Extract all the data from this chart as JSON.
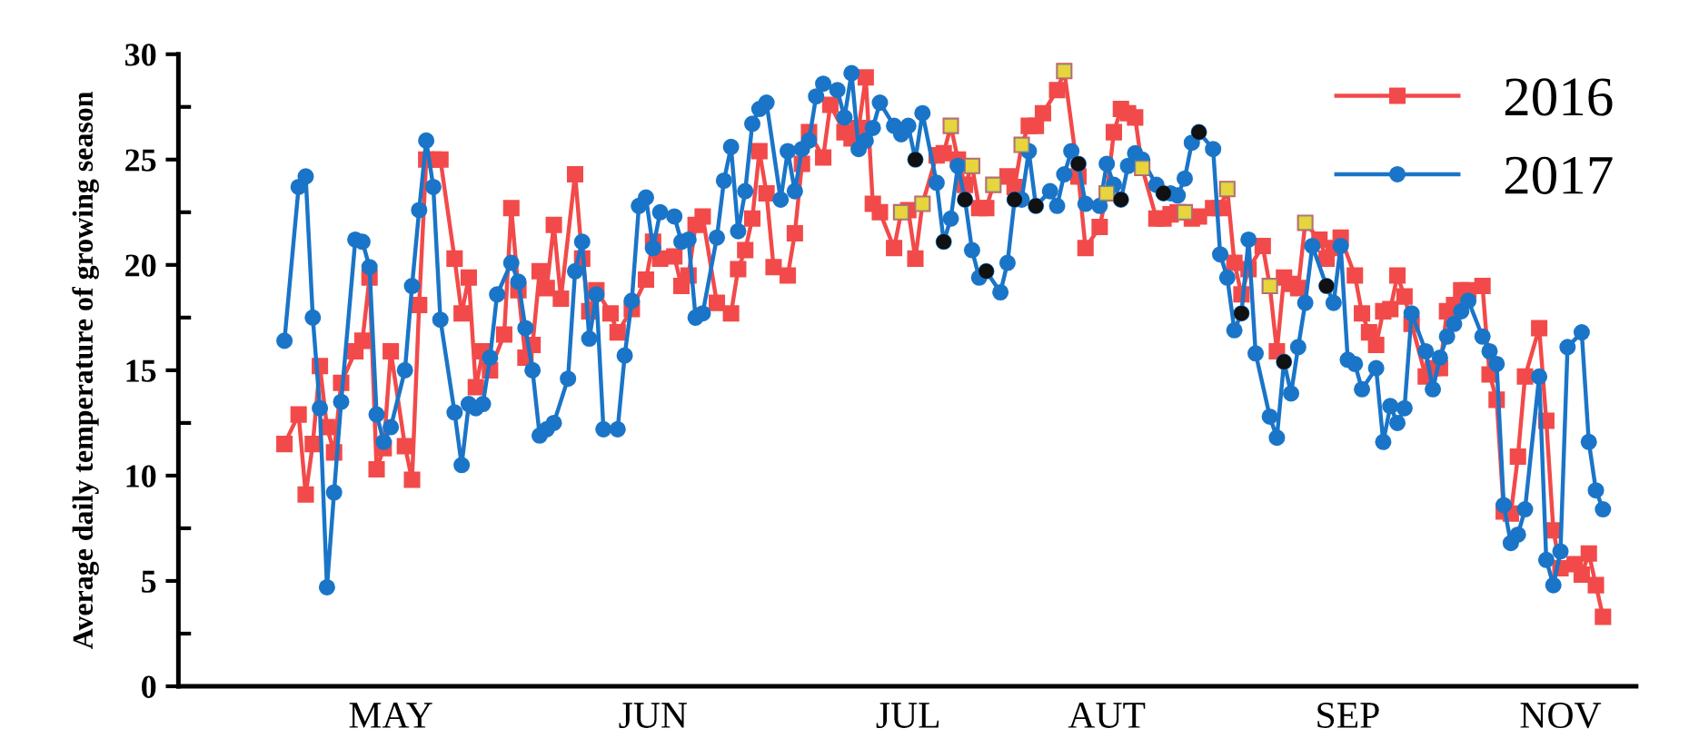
{
  "chart_data": {
    "type": "line",
    "ylabel": "Average daily temperature of growing season",
    "categories": [
      null,
      null,
      null,
      null,
      null,
      null,
      null,
      null,
      null,
      null,
      null,
      null,
      null,
      null,
      null,
      "MAY",
      null,
      null,
      null,
      null,
      null,
      null,
      null,
      null,
      null,
      null,
      null,
      null,
      null,
      null,
      null,
      null,
      null,
      null,
      null,
      null,
      null,
      null,
      null,
      null,
      null,
      null,
      null,
      null,
      null,
      null,
      null,
      null,
      null,
      null,
      null,
      null,
      "JUN",
      null,
      null,
      null,
      null,
      null,
      null,
      null,
      null,
      null,
      null,
      null,
      null,
      null,
      null,
      null,
      null,
      null,
      null,
      null,
      null,
      null,
      null,
      null,
      null,
      null,
      null,
      null,
      null,
      null,
      null,
      null,
      null,
      null,
      null,
      null,
      "JUL",
      null,
      null,
      null,
      null,
      null,
      null,
      null,
      null,
      null,
      null,
      null,
      null,
      null,
      null,
      null,
      null,
      null,
      null,
      null,
      null,
      null,
      null,
      null,
      null,
      null,
      null,
      null,
      "AUT",
      null,
      null,
      null,
      null,
      null,
      null,
      null,
      null,
      null,
      null,
      null,
      null,
      null,
      null,
      null,
      null,
      null,
      null,
      null,
      null,
      null,
      null,
      null,
      null,
      null,
      null,
      null,
      null,
      null,
      null,
      null,
      null,
      null,
      "SEP",
      null,
      null,
      null,
      null,
      null,
      null,
      null,
      null,
      null,
      null,
      null,
      null,
      null,
      null,
      null,
      null,
      null,
      null,
      null,
      null,
      null,
      null,
      null,
      null,
      null,
      null,
      null,
      null,
      null,
      "NOV",
      null,
      null,
      null,
      null,
      null,
      null
    ],
    "ylim": [
      0,
      30
    ],
    "yticks": [
      0,
      5,
      10,
      15,
      20,
      25,
      30
    ],
    "grid": false,
    "legend": "top right",
    "line_style": "solid",
    "series": [
      {
        "name": "2016",
        "color": "#f24a4a",
        "marker": "square",
        "values": [
          11.5,
          null,
          12.9,
          9.1,
          11.5,
          15.2,
          12.3,
          11.1,
          14.4,
          null,
          15.9,
          16.4,
          19.4,
          10.3,
          11.3,
          15.9,
          null,
          11.4,
          9.8,
          18.1,
          25.0,
          25.0,
          25.0,
          null,
          20.3,
          17.7,
          19.4,
          14.2,
          15.9,
          15.0,
          null,
          16.7,
          22.7,
          18.8,
          15.6,
          16.2,
          19.7,
          18.9,
          21.9,
          18.4,
          null,
          24.3,
          20.3,
          17.8,
          18.8,
          null,
          17.7,
          16.8,
          null,
          17.9,
          null,
          19.3,
          21.1,
          20.3,
          null,
          20.4,
          19.0,
          19.5,
          21.9,
          22.3,
          null,
          18.2,
          null,
          17.7,
          19.8,
          20.7,
          22.2,
          25.4,
          23.4,
          19.9,
          null,
          19.5,
          21.5,
          24.8,
          26.3,
          null,
          25.1,
          27.6,
          null,
          26.3,
          26.0,
          26.5,
          28.9,
          22.9,
          22.5,
          null,
          20.8,
          22.5,
          22.6,
          20.3,
          22.9,
          null,
          25.2,
          25.3,
          26.6,
          25.0,
          23.8,
          24.7,
          22.7,
          22.7,
          23.8,
          null,
          24.2,
          23.7,
          25.7,
          26.6,
          26.6,
          27.2,
          null,
          28.3,
          29.2,
          null,
          24.2,
          20.8,
          null,
          21.8,
          23.4,
          26.3,
          27.4,
          27.2,
          27.0,
          24.6,
          null,
          22.2,
          22.2,
          22.4,
          22.5,
          22.5,
          22.2,
          22.3,
          null,
          22.7,
          22.7,
          23.6,
          20.1,
          18.6,
          19.8,
          null,
          20.9,
          19.0,
          15.9,
          19.4,
          19.1,
          18.9,
          22.0,
          null,
          21.2,
          20.3,
          20.8,
          21.3,
          null,
          19.5,
          17.7,
          16.8,
          16.2,
          17.8,
          17.9,
          19.5,
          18.5,
          17.2,
          null,
          14.7,
          15.1,
          15.1,
          17.8,
          18.1,
          18.8,
          18.8,
          null,
          19.0,
          14.8,
          13.6,
          8.3,
          8.2,
          10.9,
          14.7,
          null,
          17.0,
          12.6,
          7.4,
          5.6,
          null,
          5.8,
          5.3,
          6.3,
          4.8,
          3.3
        ]
      },
      {
        "name": "2017",
        "color": "#1a75c8",
        "marker": "circle",
        "values": [
          16.4,
          null,
          23.7,
          24.2,
          17.5,
          13.2,
          4.7,
          9.2,
          13.5,
          null,
          21.2,
          21.1,
          19.9,
          12.9,
          11.6,
          12.3,
          null,
          15.0,
          19.0,
          22.6,
          25.9,
          23.7,
          17.4,
          null,
          13.0,
          10.5,
          13.4,
          13.2,
          13.4,
          15.6,
          18.6,
          null,
          20.1,
          19.2,
          17.0,
          15.0,
          11.9,
          12.2,
          12.5,
          null,
          14.6,
          19.7,
          21.1,
          16.5,
          18.6,
          12.2,
          null,
          12.2,
          15.7,
          18.3,
          22.8,
          23.2,
          20.8,
          22.5,
          null,
          22.3,
          21.1,
          21.2,
          17.5,
          17.7,
          null,
          21.3,
          24.0,
          25.6,
          21.6,
          23.5,
          26.7,
          27.4,
          27.7,
          null,
          23.1,
          25.4,
          23.5,
          25.5,
          25.9,
          28.0,
          28.6,
          null,
          28.3,
          27.0,
          29.1,
          25.5,
          25.9,
          26.5,
          27.7,
          null,
          26.6,
          26.2,
          26.6,
          25.0,
          27.2,
          null,
          23.9,
          21.1,
          22.2,
          24.7,
          23.1,
          20.7,
          19.4,
          19.7,
          null,
          18.7,
          20.1,
          23.1,
          23.1,
          25.4,
          22.8,
          null,
          23.5,
          22.8,
          24.3,
          25.4,
          24.8,
          22.9,
          null,
          22.8,
          24.8,
          23.8,
          23.1,
          24.7,
          25.3,
          25.0,
          null,
          23.8,
          23.4,
          23.4,
          23.3,
          24.1,
          25.8,
          26.3,
          null,
          25.5,
          20.5,
          19.4,
          16.9,
          17.7,
          21.2,
          15.8,
          null,
          12.8,
          11.8,
          15.4,
          13.9,
          16.1,
          18.2,
          20.9,
          null,
          19.0,
          18.2,
          20.9,
          15.5,
          15.3,
          14.1,
          null,
          15.1,
          11.6,
          13.3,
          12.5,
          13.2,
          17.7,
          null,
          15.9,
          14.1,
          15.6,
          16.6,
          17.2,
          17.8,
          18.3,
          null,
          16.6,
          15.9,
          15.3,
          8.6,
          6.8,
          7.2,
          8.4,
          null,
          14.7,
          6.0,
          4.8,
          6.4,
          16.1,
          null,
          16.8,
          11.6,
          9.3,
          8.4
        ]
      },
      {
        "type": "scatter",
        "color": "#e8d43c",
        "marker": "square",
        "values": [
          null,
          null,
          null,
          null,
          null,
          null,
          null,
          null,
          null,
          null,
          null,
          null,
          null,
          null,
          null,
          null,
          null,
          null,
          null,
          null,
          null,
          null,
          null,
          null,
          null,
          null,
          null,
          null,
          null,
          null,
          null,
          null,
          null,
          null,
          null,
          null,
          null,
          null,
          null,
          null,
          null,
          null,
          null,
          null,
          null,
          null,
          null,
          null,
          null,
          null,
          null,
          null,
          null,
          null,
          null,
          null,
          null,
          null,
          null,
          null,
          null,
          null,
          null,
          null,
          null,
          null,
          null,
          null,
          null,
          null,
          null,
          null,
          null,
          null,
          null,
          null,
          null,
          null,
          null,
          null,
          null,
          null,
          null,
          null,
          null,
          null,
          null,
          22.5,
          null,
          null,
          22.9,
          null,
          null,
          null,
          26.6,
          null,
          null,
          24.7,
          null,
          null,
          23.8,
          null,
          null,
          null,
          25.7,
          null,
          null,
          null,
          null,
          null,
          29.2,
          null,
          null,
          null,
          null,
          null,
          23.4,
          null,
          null,
          null,
          null,
          24.6,
          null,
          null,
          null,
          null,
          null,
          22.5,
          null,
          null,
          null,
          null,
          null,
          23.6,
          null,
          null,
          null,
          null,
          null,
          19.0,
          null,
          null,
          null,
          null,
          22.0,
          null,
          null,
          null,
          null,
          null,
          null,
          null,
          null,
          null,
          null,
          null,
          null,
          null,
          null,
          null,
          null,
          null,
          null,
          null,
          null,
          null,
          null,
          null,
          null,
          null,
          null,
          null,
          null,
          null,
          null,
          null,
          null,
          null,
          null,
          null,
          null,
          null,
          null,
          null,
          null,
          null,
          null
        ]
      },
      {
        "type": "scatter",
        "color": "#111111",
        "marker": "circle",
        "values": [
          null,
          null,
          null,
          null,
          null,
          null,
          null,
          null,
          null,
          null,
          null,
          null,
          null,
          null,
          null,
          null,
          null,
          null,
          null,
          null,
          null,
          null,
          null,
          null,
          null,
          null,
          null,
          null,
          null,
          null,
          null,
          null,
          null,
          null,
          null,
          null,
          null,
          null,
          null,
          null,
          null,
          null,
          null,
          null,
          null,
          null,
          null,
          null,
          null,
          null,
          null,
          null,
          null,
          null,
          null,
          null,
          null,
          null,
          null,
          null,
          null,
          null,
          null,
          null,
          null,
          null,
          null,
          null,
          null,
          null,
          null,
          null,
          null,
          null,
          null,
          null,
          null,
          null,
          null,
          null,
          null,
          null,
          null,
          null,
          null,
          null,
          null,
          null,
          null,
          25.0,
          null,
          null,
          null,
          21.1,
          null,
          null,
          23.1,
          null,
          null,
          19.7,
          null,
          null,
          null,
          23.1,
          null,
          null,
          22.8,
          null,
          null,
          null,
          null,
          null,
          24.8,
          null,
          null,
          null,
          null,
          null,
          23.1,
          null,
          null,
          null,
          null,
          null,
          23.4,
          null,
          null,
          null,
          null,
          26.3,
          null,
          null,
          null,
          null,
          null,
          17.7,
          null,
          null,
          null,
          null,
          null,
          15.4,
          null,
          null,
          null,
          null,
          null,
          19.0,
          null,
          null,
          null,
          null,
          null,
          null,
          null,
          null,
          null,
          null,
          null,
          null,
          null,
          null,
          null,
          null,
          null,
          null,
          null,
          null,
          null,
          null,
          null,
          null,
          null,
          null,
          null,
          null,
          null,
          null,
          null,
          null,
          null,
          null,
          null,
          null,
          null,
          null,
          null
        ]
      }
    ]
  }
}
